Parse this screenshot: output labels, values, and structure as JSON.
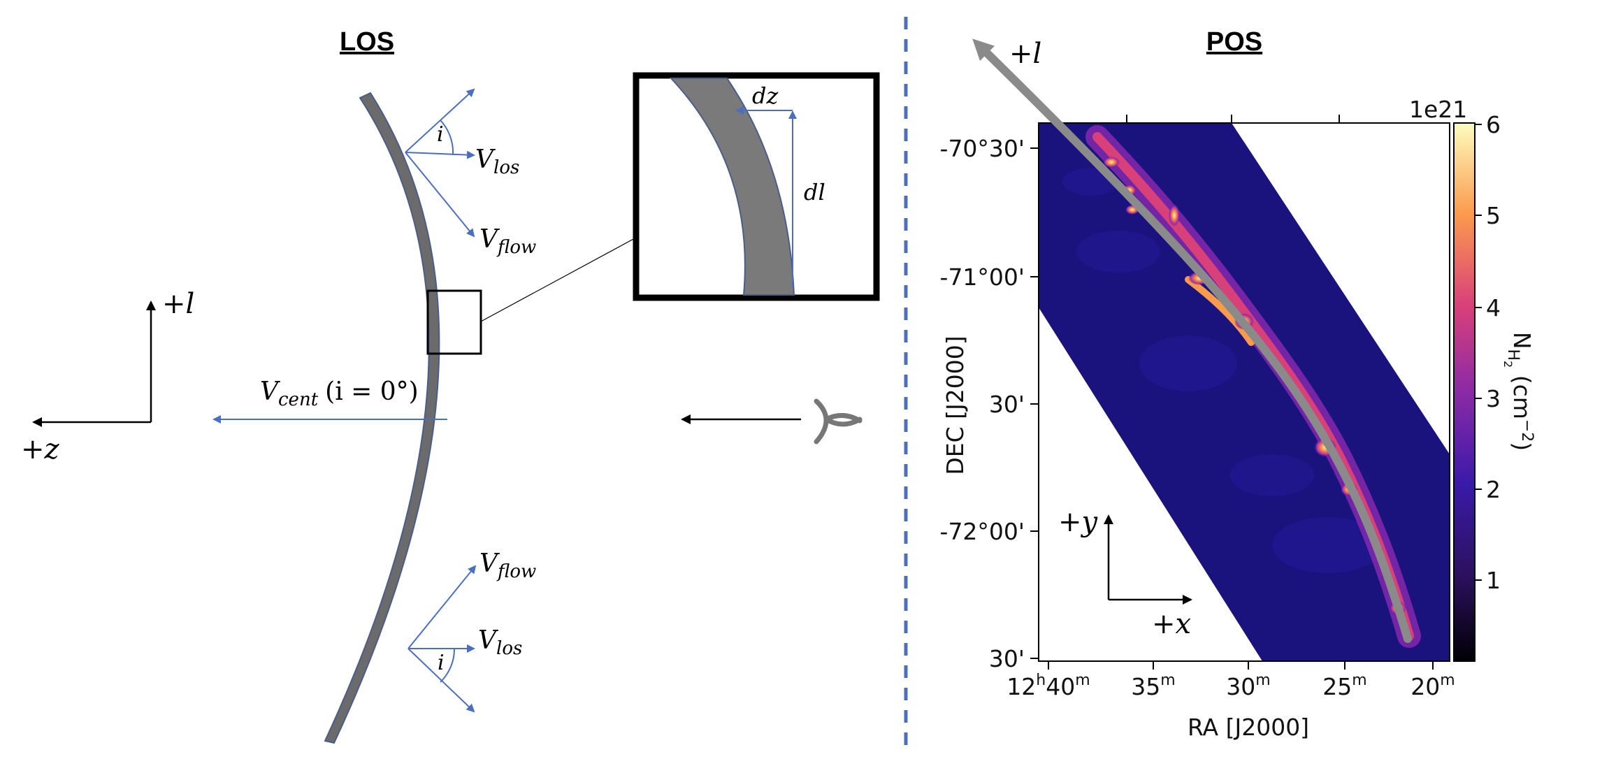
{
  "los_panel": {
    "title": "LOS",
    "labels": {
      "i_top": "i",
      "vlos_top": "V",
      "vlos_top_sub": "los",
      "vflow_top": "V",
      "vflow_top_sub": "flow",
      "vcent": "V",
      "vcent_sub": "cent",
      "vcent_cond": "(i = 0°)",
      "vflow_bottom": "V",
      "vflow_bottom_sub": "flow",
      "vlos_bottom": "V",
      "vlos_bottom_sub": "los",
      "i_bottom": "i",
      "axis_l": "+l",
      "axis_z": "+z"
    },
    "inset": {
      "dz": "dz",
      "dl": "dl"
    }
  },
  "pos_panel": {
    "title": "POS",
    "path_label": "+l",
    "axis_y": "+y",
    "axis_x": "+x",
    "colorbar_exponent": "1e21",
    "colorbar_ticks": [
      "1",
      "2",
      "3",
      "4",
      "5",
      "6"
    ],
    "colorbar_label": "N",
    "colorbar_label_sub": "H",
    "colorbar_label_subsub": "2",
    "colorbar_label_units": " (cm",
    "colorbar_label_exp": "−2",
    "colorbar_label_close": ")",
    "colormap": [
      "#000004",
      "#2c115f",
      "#721f81",
      "#b73779",
      "#f1605d",
      "#feb078",
      "#fcfdbf"
    ],
    "ytick_labels": [
      "-70°30'",
      "-71°00'",
      "30'",
      "-72°00'",
      "30'"
    ],
    "ylabel": "DEC [J2000]",
    "xtick_labels": [
      {
        "h": "12",
        "hs": "h",
        "m": "40",
        "ms": "m"
      },
      {
        "h": "",
        "hs": "",
        "m": "35",
        "ms": "m"
      },
      {
        "h": "",
        "hs": "",
        "m": "30",
        "ms": "m"
      },
      {
        "h": "",
        "hs": "",
        "m": "25",
        "ms": "m"
      },
      {
        "h": "",
        "hs": "",
        "m": "20",
        "ms": "m"
      }
    ],
    "xlabel": "RA [J2000]"
  },
  "colors": {
    "filament_gray": "#7a7a7a",
    "arrow_blue": "#4a6fc0",
    "divider_blue": "#4a6fc0",
    "map_background": "#16127a"
  }
}
